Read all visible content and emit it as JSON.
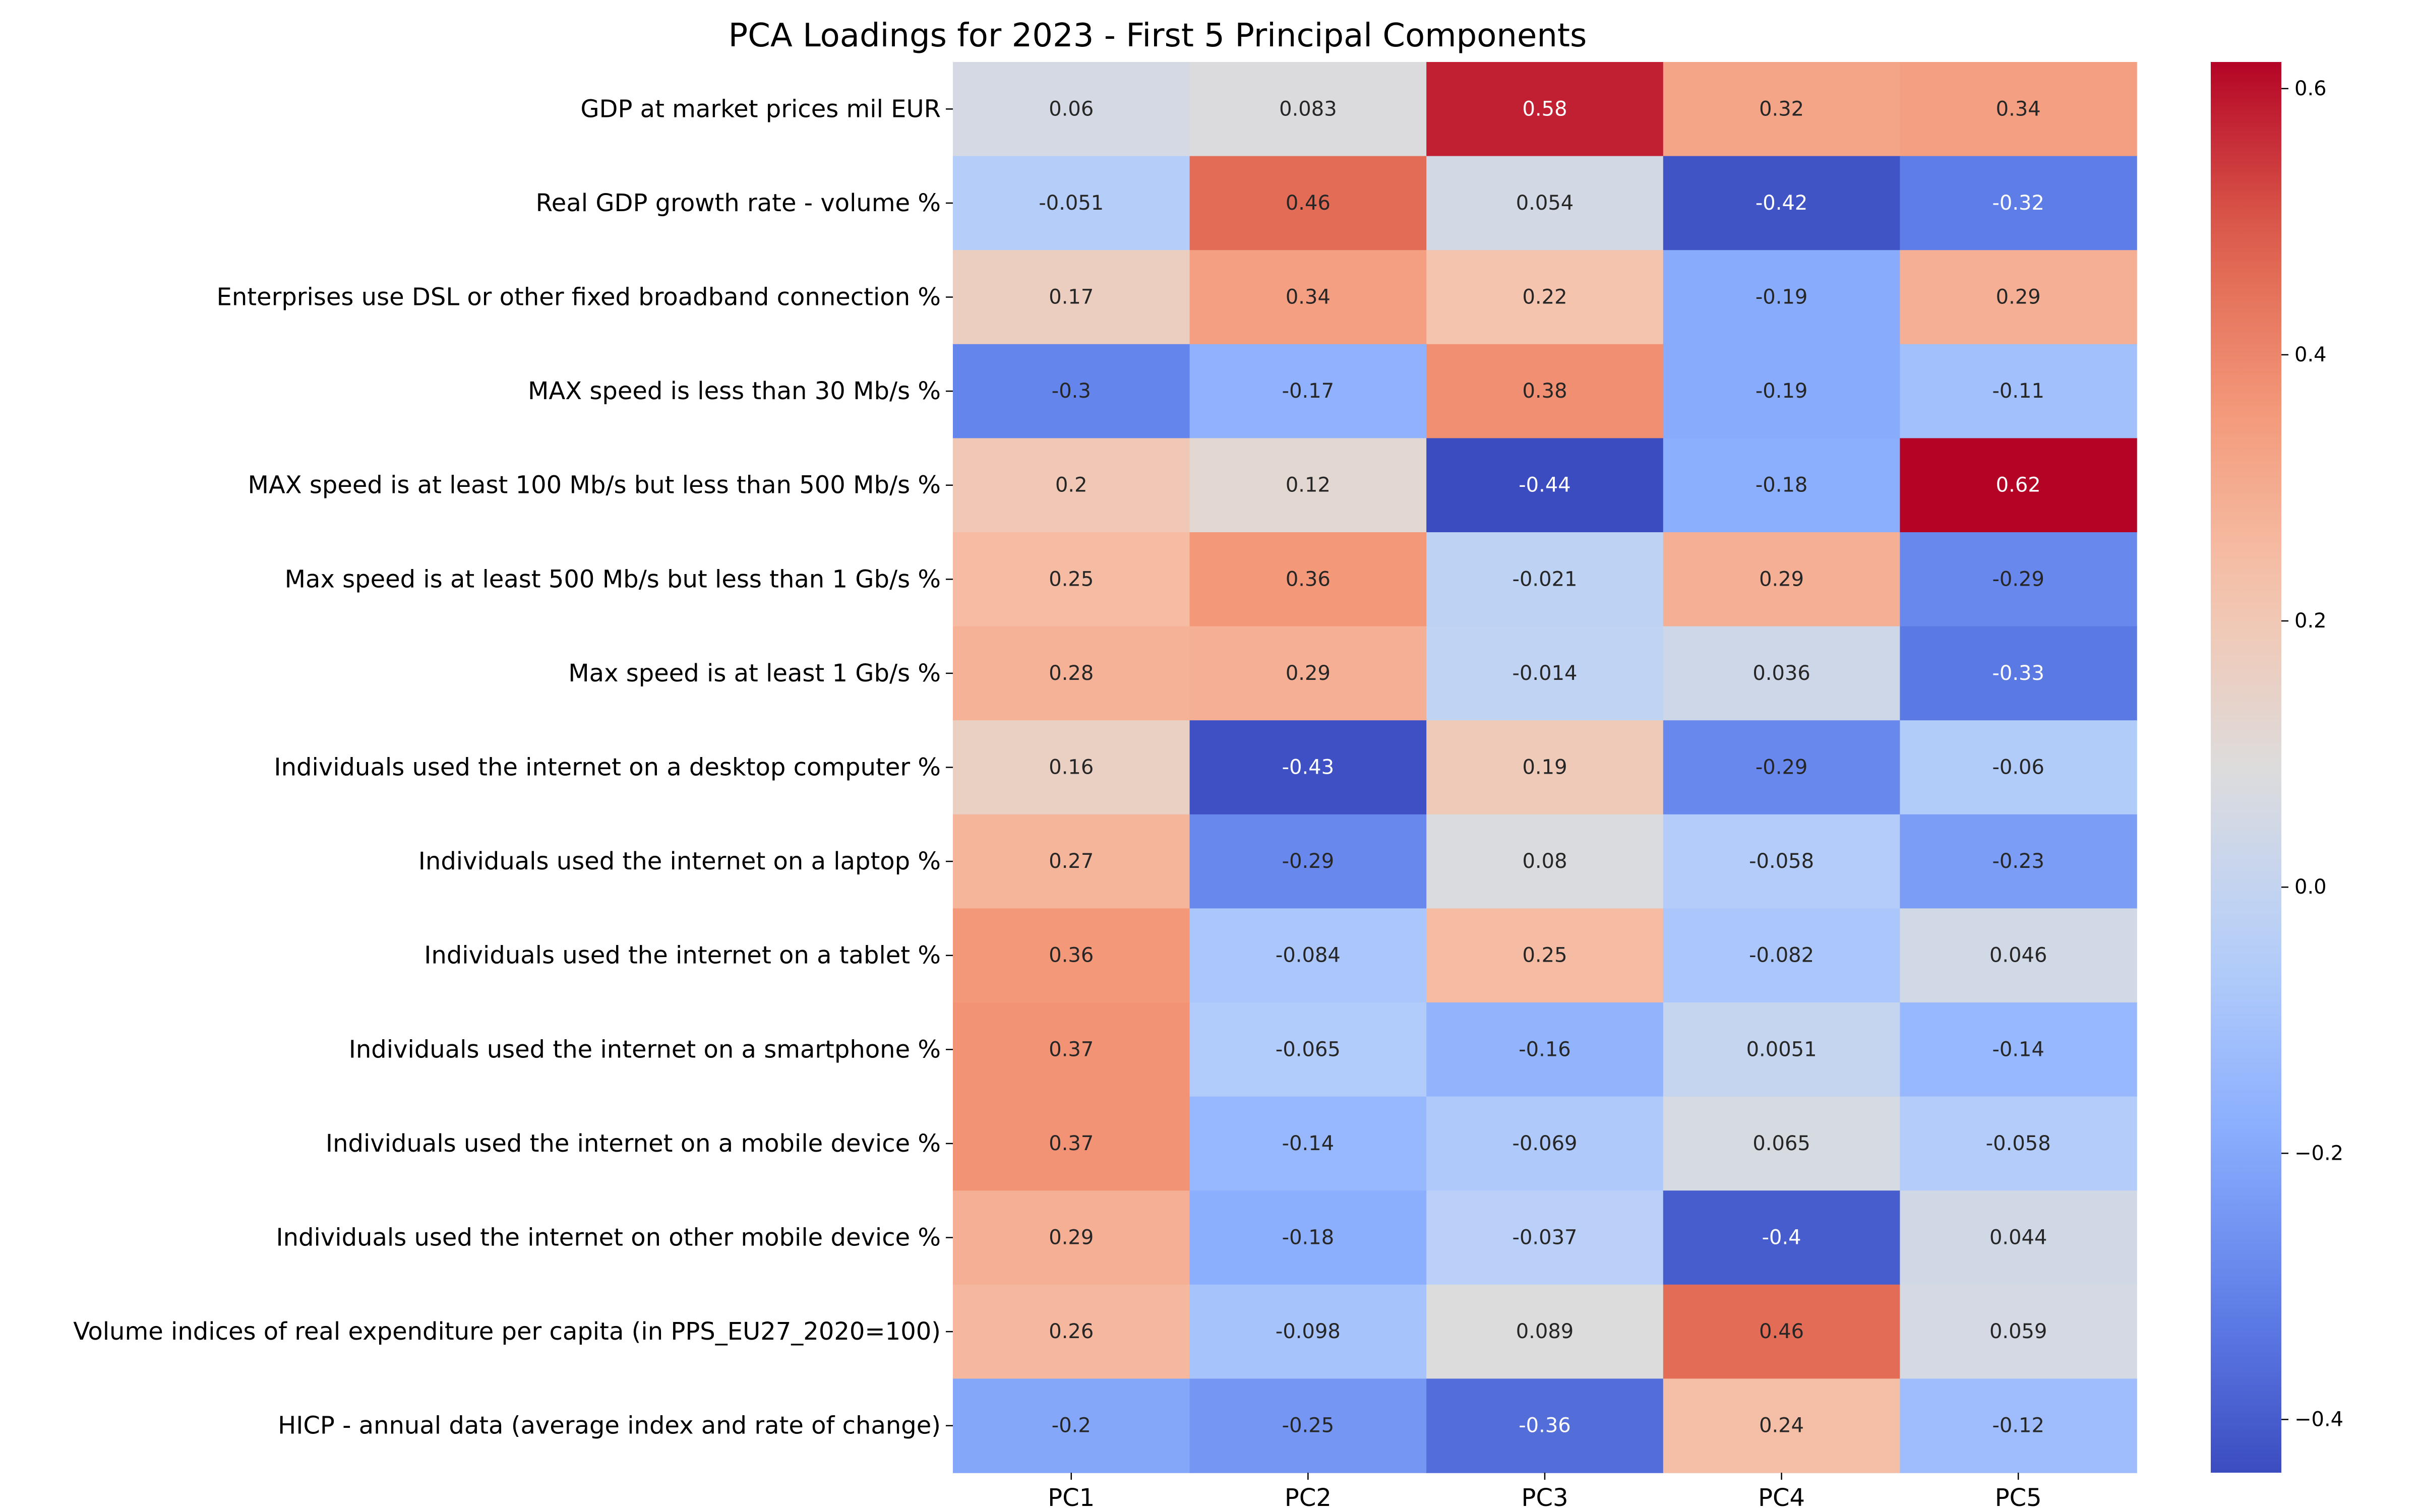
{
  "chart_data": {
    "type": "heatmap",
    "title": "PCA Loadings for 2023 - First 5 Principal Components",
    "xlabel": "",
    "ylabel": "",
    "columns": [
      "PC1",
      "PC2",
      "PC3",
      "PC4",
      "PC5"
    ],
    "rows": [
      "GDP at market prices mil EUR",
      "Real GDP growth rate - volume %",
      "Enterprises use DSL or other fixed broadband connection %",
      "MAX speed is less than 30 Mb/s %",
      "MAX speed is at least 100 Mb/s but less than 500 Mb/s %",
      "Max speed is at least 500 Mb/s but less than 1 Gb/s %",
      "Max speed is at least 1 Gb/s %",
      "Individuals used the internet on a desktop computer %",
      "Individuals used the internet on a laptop %",
      "Individuals used the internet on a tablet %",
      "Individuals used the internet on a smartphone %",
      "Individuals used the internet on a mobile device %",
      "Individuals used the internet on other mobile device %",
      "Volume indices of real expenditure per capita (in PPS_EU27_2020=100)",
      "HICP - annual data (average index and rate of change)"
    ],
    "values": [
      [
        0.06,
        0.083,
        0.58,
        0.32,
        0.34
      ],
      [
        -0.051,
        0.46,
        0.054,
        -0.42,
        -0.32
      ],
      [
        0.17,
        0.34,
        0.22,
        -0.19,
        0.29
      ],
      [
        -0.3,
        -0.17,
        0.38,
        -0.19,
        -0.11
      ],
      [
        0.2,
        0.12,
        -0.44,
        -0.18,
        0.62
      ],
      [
        0.25,
        0.36,
        -0.021,
        0.29,
        -0.29
      ],
      [
        0.28,
        0.29,
        -0.014,
        0.036,
        -0.33
      ],
      [
        0.16,
        -0.43,
        0.19,
        -0.29,
        -0.06
      ],
      [
        0.27,
        -0.29,
        0.08,
        -0.058,
        -0.23
      ],
      [
        0.36,
        -0.084,
        0.25,
        -0.082,
        0.046
      ],
      [
        0.37,
        -0.065,
        -0.16,
        0.0051,
        -0.14
      ],
      [
        0.37,
        -0.14,
        -0.069,
        0.065,
        -0.058
      ],
      [
        0.29,
        -0.18,
        -0.037,
        -0.4,
        0.044
      ],
      [
        0.26,
        -0.098,
        0.089,
        0.46,
        0.059
      ],
      [
        -0.2,
        -0.25,
        -0.36,
        0.24,
        -0.12
      ]
    ],
    "labels": [
      [
        "0.06",
        "0.083",
        "0.58",
        "0.32",
        "0.34"
      ],
      [
        "-0.051",
        "0.46",
        "0.054",
        "-0.42",
        "-0.32"
      ],
      [
        "0.17",
        "0.34",
        "0.22",
        "-0.19",
        "0.29"
      ],
      [
        "-0.3",
        "-0.17",
        "0.38",
        "-0.19",
        "-0.11"
      ],
      [
        "0.2",
        "0.12",
        "-0.44",
        "-0.18",
        "0.62"
      ],
      [
        "0.25",
        "0.36",
        "-0.021",
        "0.29",
        "-0.29"
      ],
      [
        "0.28",
        "0.29",
        "-0.014",
        "0.036",
        "-0.33"
      ],
      [
        "0.16",
        "-0.43",
        "0.19",
        "-0.29",
        "-0.06"
      ],
      [
        "0.27",
        "-0.29",
        "0.08",
        "-0.058",
        "-0.23"
      ],
      [
        "0.36",
        "-0.084",
        "0.25",
        "-0.082",
        "0.046"
      ],
      [
        "0.37",
        "-0.065",
        "-0.16",
        "0.0051",
        "-0.14"
      ],
      [
        "0.37",
        "-0.14",
        "-0.069",
        "0.065",
        "-0.058"
      ],
      [
        "0.29",
        "-0.18",
        "-0.037",
        "-0.4",
        "0.044"
      ],
      [
        "0.26",
        "-0.098",
        "0.089",
        "0.46",
        "0.059"
      ],
      [
        "-0.2",
        "-0.25",
        "-0.36",
        "0.24",
        "-0.12"
      ]
    ],
    "colormap": "coolwarm",
    "vmin": -0.44,
    "vmax": 0.62,
    "colorbar": {
      "ticks": [
        -0.4,
        -0.2,
        0.0,
        0.2,
        0.4,
        0.6
      ],
      "tick_labels": [
        "−0.4",
        "−0.2",
        "0.0",
        "0.2",
        "0.4",
        "0.6"
      ]
    },
    "grid": false
  }
}
